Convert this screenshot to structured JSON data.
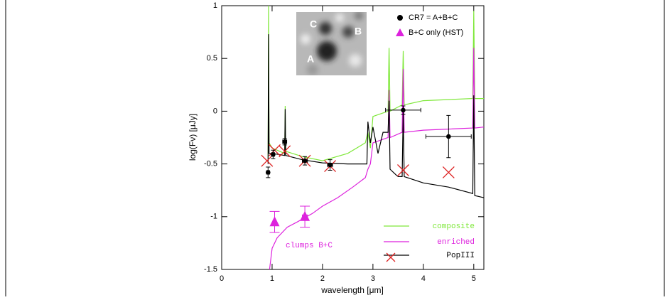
{
  "chart_data": {
    "type": "line",
    "x_label": "wavelength [μm]",
    "y_label": "log(Fν) [μJy]",
    "xlim": [
      0,
      5.2
    ],
    "xticks": [
      0,
      1,
      2,
      3,
      4,
      5
    ],
    "ylim": [
      -1.5,
      1
    ],
    "yticks": [
      -1.5,
      -1,
      -0.5,
      0,
      0.5,
      1
    ],
    "annotation": "clumps B+C",
    "annotation_color": "#dd22dd",
    "inset_labels": [
      "A",
      "B",
      "C"
    ],
    "series": [
      {
        "name": "composite",
        "color": "#7fe83a",
        "x": [
          0.92,
          0.93,
          0.94,
          1.0,
          1.25,
          1.26,
          1.27,
          1.6,
          2.0,
          2.5,
          2.85,
          2.9,
          2.95,
          3.0,
          3.3,
          3.32,
          3.34,
          3.58,
          3.6,
          3.62,
          4.0,
          4.98,
          5.0,
          5.02,
          5.2
        ],
        "values": [
          -0.45,
          1.0,
          -0.3,
          -0.35,
          -0.4,
          0.05,
          -0.38,
          -0.43,
          -0.47,
          -0.4,
          -0.3,
          -0.2,
          -0.35,
          -0.05,
          0.0,
          0.6,
          0.0,
          0.06,
          0.57,
          0.06,
          0.1,
          0.12,
          0.95,
          0.12,
          0.12
        ]
      },
      {
        "name": "enriched",
        "color": "#dd22dd",
        "x": [
          0.95,
          1.0,
          1.1,
          1.3,
          1.5,
          1.8,
          2.0,
          2.3,
          2.6,
          2.85,
          2.9,
          2.95,
          3.0,
          3.3,
          3.32,
          3.34,
          3.58,
          3.6,
          3.62,
          4.0,
          4.98,
          5.0,
          5.02,
          5.2
        ],
        "values": [
          -1.5,
          -1.3,
          -1.2,
          -1.1,
          -1.05,
          -0.97,
          -0.9,
          -0.82,
          -0.72,
          -0.63,
          -0.55,
          -0.5,
          -0.3,
          -0.25,
          0.2,
          -0.25,
          -0.2,
          0.4,
          -0.2,
          -0.18,
          -0.16,
          0.6,
          -0.16,
          -0.15
        ]
      },
      {
        "name": "PopIII",
        "color": "#000000",
        "x": [
          0.92,
          0.93,
          0.94,
          1.0,
          1.25,
          1.26,
          1.27,
          1.6,
          2.0,
          2.5,
          2.88,
          2.9,
          2.95,
          3.0,
          3.1,
          3.2,
          3.3,
          3.32,
          3.34,
          3.45,
          3.5,
          3.58,
          3.6,
          3.62,
          4.0,
          4.5,
          4.98,
          5.0,
          5.02,
          5.2
        ],
        "values": [
          -0.5,
          0.73,
          -0.4,
          -0.4,
          -0.42,
          0.02,
          -0.42,
          -0.46,
          -0.49,
          -0.5,
          -0.5,
          -0.1,
          -0.3,
          -0.15,
          -0.4,
          -0.2,
          -0.2,
          0.1,
          -0.55,
          -0.6,
          -0.62,
          -0.62,
          0.0,
          -0.62,
          -0.68,
          -0.72,
          -0.78,
          0.15,
          -0.8,
          -0.82
        ]
      }
    ],
    "points": [
      {
        "name": "CR7 = A+B+C",
        "color": "#000000",
        "marker": "circle",
        "x": [
          0.92,
          1.02,
          1.25,
          1.65,
          2.15,
          3.6,
          4.5
        ],
        "values": [
          -0.58,
          -0.41,
          -0.29,
          -0.47,
          -0.51,
          0.01,
          -0.24
        ],
        "xerr": [
          0.03,
          0.03,
          0.04,
          0.05,
          0.05,
          0.35,
          0.45
        ],
        "yerr": [
          0.05,
          0.04,
          0.03,
          0.04,
          0.05,
          0.04,
          0.2
        ]
      },
      {
        "name": "B+C only (HST)",
        "color": "#dd22dd",
        "marker": "triangle",
        "x": [
          1.05,
          1.65
        ],
        "values": [
          -1.05,
          -1.0
        ],
        "xerr": [
          0.03,
          0.05
        ],
        "yerr": [
          0.1,
          0.1
        ]
      }
    ],
    "model_points": {
      "color": "#dd2222",
      "x": [
        0.9,
        1.05,
        1.25,
        1.65,
        2.15,
        3.6,
        4.5
      ],
      "values": [
        -0.47,
        -0.37,
        -0.38,
        -0.47,
        -0.52,
        -0.56,
        -0.58
      ]
    }
  }
}
